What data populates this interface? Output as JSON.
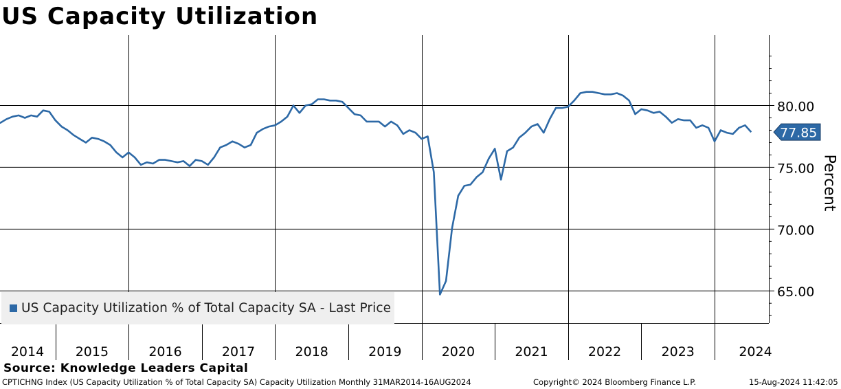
{
  "title": "US Capacity Utilization",
  "source": "Source: Knowledge Leaders Capital",
  "footer": {
    "left": "CPTICHNG Index (US Capacity Utilization % of Total Capacity SA) Capacity Utilization  Monthly 31MAR2014-16AUG2024",
    "middle": "Copyright© 2024 Bloomberg Finance L.P.",
    "right": "15-Aug-2024 11:42:05"
  },
  "legend": {
    "label": "US Capacity Utilization % of Total Capacity SA - Last Price",
    "color": "#2d69a6"
  },
  "chart_data": {
    "type": "line",
    "title": "US Capacity Utilization",
    "ylabel": "Percent",
    "ylim": [
      62.4,
      85.7
    ],
    "yticks": [
      65,
      70,
      75,
      80
    ],
    "ytick_labels": [
      "65.00",
      "70.00",
      "75.00",
      "80.00"
    ],
    "years": [
      "2014",
      "2015",
      "2016",
      "2017",
      "2018",
      "2019",
      "2020",
      "2021",
      "2022",
      "2023",
      "2024"
    ],
    "last_value_label": "77.85",
    "series": [
      {
        "name": "US Capacity Utilization % of Total Capacity SA - Last Price",
        "color": "#2d69a6",
        "start": "2014-03",
        "values": [
          78.6,
          78.6,
          78.9,
          79.1,
          79.2,
          79.0,
          79.2,
          79.1,
          79.6,
          79.5,
          78.8,
          78.3,
          78.0,
          77.6,
          77.3,
          77.0,
          77.4,
          77.3,
          77.1,
          76.8,
          76.2,
          75.8,
          76.2,
          75.8,
          75.2,
          75.4,
          75.3,
          75.6,
          75.6,
          75.5,
          75.4,
          75.5,
          75.1,
          75.6,
          75.5,
          75.2,
          75.8,
          76.6,
          76.8,
          77.1,
          76.9,
          76.6,
          76.8,
          77.8,
          78.1,
          78.3,
          78.4,
          78.7,
          79.1,
          80.0,
          79.4,
          80.0,
          80.1,
          80.5,
          80.5,
          80.4,
          80.4,
          80.3,
          79.8,
          79.3,
          79.2,
          78.7,
          78.7,
          78.7,
          78.3,
          78.7,
          78.4,
          77.7,
          78.0,
          77.8,
          77.3,
          77.5,
          74.6,
          64.7,
          65.8,
          70.1,
          72.7,
          73.5,
          73.6,
          74.2,
          74.6,
          75.7,
          76.5,
          74.0,
          76.3,
          76.6,
          77.4,
          77.8,
          78.3,
          78.5,
          77.8,
          78.9,
          79.8,
          79.8,
          79.9,
          80.4,
          81.0,
          81.1,
          81.1,
          81.0,
          80.9,
          80.9,
          81.0,
          80.8,
          80.4,
          79.3,
          79.7,
          79.6,
          79.4,
          79.5,
          79.1,
          78.6,
          78.9,
          78.8,
          78.8,
          78.2,
          78.4,
          78.2,
          77.1,
          78.0,
          77.8,
          77.7,
          78.2,
          78.4,
          77.85
        ]
      }
    ]
  }
}
